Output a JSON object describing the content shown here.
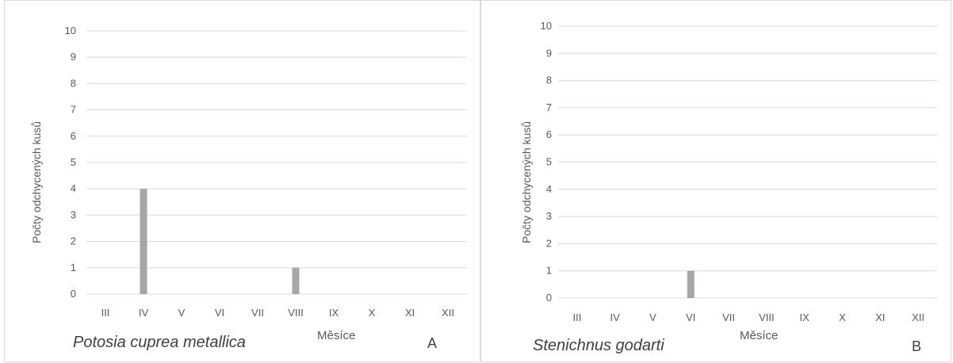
{
  "chart_data": [
    {
      "type": "bar",
      "ylabel": "Počty odchycených kusů",
      "xlabel": "Měsíce",
      "caption": "Potosia cuprea metallica",
      "panel_label": "A",
      "categories": [
        "III",
        "IV",
        "V",
        "VI",
        "VII",
        "VIII",
        "IX",
        "X",
        "XI",
        "XII"
      ],
      "values": [
        0,
        4,
        0,
        0,
        0,
        1,
        0,
        0,
        0,
        0
      ],
      "ylim": [
        0,
        10
      ],
      "yticks": [
        0,
        1,
        2,
        3,
        4,
        5,
        6,
        7,
        8,
        9,
        10
      ],
      "grid": true,
      "bar_color": "#a6a6a6"
    },
    {
      "type": "bar",
      "ylabel": "Počty odchycených kusů",
      "xlabel": "Měsíce",
      "caption": "Stenichnus godarti",
      "panel_label": "B",
      "categories": [
        "III",
        "IV",
        "V",
        "VI",
        "VII",
        "VIII",
        "IX",
        "X",
        "XI",
        "XII"
      ],
      "values": [
        0,
        0,
        0,
        1,
        0,
        0,
        0,
        0,
        0,
        0
      ],
      "ylim": [
        0,
        10
      ],
      "yticks": [
        0,
        1,
        2,
        3,
        4,
        5,
        6,
        7,
        8,
        9,
        10
      ],
      "grid": true,
      "bar_color": "#a6a6a6"
    }
  ]
}
